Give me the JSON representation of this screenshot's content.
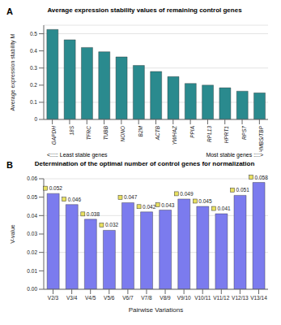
{
  "chart_data": [
    {
      "label": "A",
      "type": "bar",
      "title": "Average expression stability values of remaining control genes",
      "y_label": "Average expression stability M",
      "categories": [
        "GAPDH",
        "18S",
        "TFRC",
        "TUBB",
        "NONO",
        "B2M",
        "ACTB",
        "YWHAZ",
        "PPIA",
        "RPL13",
        "HPRT1",
        "RPS7",
        "HMBS/TBP"
      ],
      "values": [
        0.525,
        0.465,
        0.42,
        0.395,
        0.365,
        0.315,
        0.28,
        0.25,
        0.21,
        0.2,
        0.185,
        0.165,
        0.155
      ],
      "color": "#2a8a8e",
      "ylim": [
        0,
        0.55
      ],
      "yticks": [
        0,
        0.1,
        0.2,
        0.3,
        0.4,
        0.5
      ],
      "annotations": [
        "<::::: Least stable genes",
        "Most stable genes ::::>"
      ]
    },
    {
      "label": "B",
      "type": "bar",
      "title": "Determination of the optimal number of control genes for normalization",
      "y_label": "V-value",
      "x_label": "Pairwise Variations",
      "categories": [
        "V2/3",
        "V3/4",
        "V4/5",
        "V5/6",
        "V6/7",
        "V7/8",
        "V8/9",
        "V9/10",
        "V10/11",
        "V11/12",
        "V12/13",
        "V13/14"
      ],
      "values": [
        0.052,
        0.046,
        0.038,
        0.032,
        0.047,
        0.042,
        0.043,
        0.049,
        0.045,
        0.041,
        0.051,
        0.058
      ],
      "color": "#7b7bee",
      "ylim": [
        0,
        0.06
      ],
      "yticks": [
        {
          "value": 0,
          "label": "0.00"
        },
        {
          "value": 0.01,
          "label": "0.01"
        },
        {
          "value": 0.02,
          "label": "0.02"
        },
        {
          "value": 0.03,
          "label": "0.03"
        },
        {
          "value": 0.04,
          "label": "0.04"
        },
        {
          "value": 0.05,
          "label": "0.05"
        },
        {
          "value": 0.06,
          "label": "0.06"
        }
      ],
      "data_labels": true,
      "marker": "square"
    }
  ]
}
